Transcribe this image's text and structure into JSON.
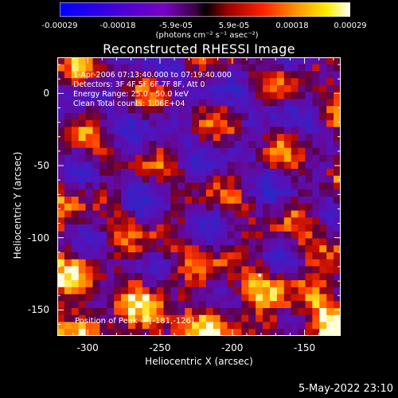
{
  "colorbar": {
    "ticks": [
      "-0.00029",
      "-0.00018",
      "-5.9e-05",
      "5.9e-05",
      "0.00018",
      "0.00029"
    ],
    "units": "(photons cm⁻² s⁻¹ asec⁻²)",
    "range": [
      -0.00029,
      0.00029
    ]
  },
  "chart_data": {
    "type": "heatmap",
    "title": "Reconstructed RHESSI Image",
    "xlabel": "Heliocentric X (arcsec)",
    "ylabel": "Heliocentric Y (arcsec)",
    "xlim": [
      -321,
      -125
    ],
    "ylim": [
      -168,
      25
    ],
    "xticks": [
      -300,
      -250,
      -200,
      -150
    ],
    "yticks": [
      0,
      -50,
      -100,
      -150
    ],
    "colormap": "blue-purple-red-yellow-white",
    "annotations": [
      "1-Apr-2006 07:13:40.000 to 07:19:40.000",
      "Detectors: 3F 4F 5F 6F 7F 8F, Att 0",
      "Energy Range: 25.0 - 50.0 keV",
      "Clean     Total counts: 1.06E+04"
    ],
    "peak_position_label": "Position of Peak = [-181,-126]",
    "peak_position": [
      -181,
      -126
    ]
  },
  "footer": {
    "date": "5-May-2022 23:10"
  }
}
